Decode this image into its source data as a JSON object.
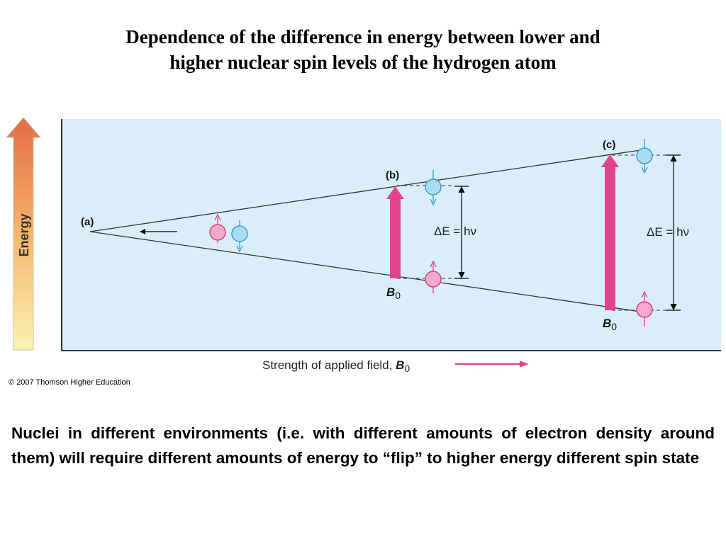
{
  "title": {
    "line1": "Dependence of the difference in energy between lower and",
    "line2": "higher nuclear spin levels of the hydrogen atom"
  },
  "diagram": {
    "energy_axis_label": "Energy",
    "point_labels": {
      "a": "(a)",
      "b": "(b)",
      "c": "(c)"
    },
    "delta_e_label": "ΔE = hν",
    "field_symbol": "B",
    "field_subscript": "0",
    "x_axis_label": "Strength of applied field, ",
    "colors": {
      "panel_bg": "#d9eef9",
      "transition_arrow": "#e0448c",
      "spin_down_fill": "#a9dcf2",
      "spin_down_stroke": "#3a9ccc",
      "spin_up_fill": "#f4aacb",
      "spin_up_stroke": "#d6407e",
      "energy_arrow_top": "#e56a45",
      "energy_arrow_bottom": "#fbf3b4"
    }
  },
  "copyright": "© 2007 Thomson Higher Education",
  "body_text": "Nuclei in different environments (i.e. with different amounts of electron density around them) will require different amounts of energy to “flip” to higher energy different spin state"
}
